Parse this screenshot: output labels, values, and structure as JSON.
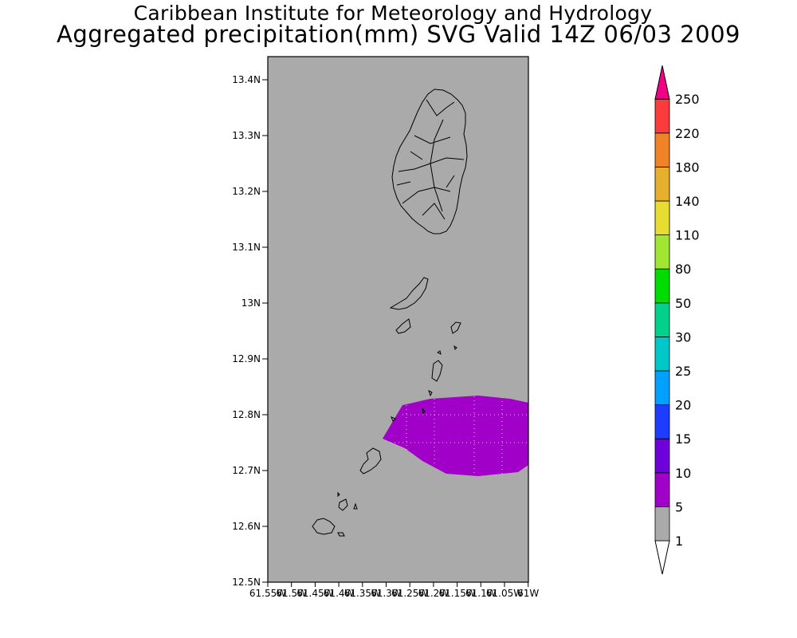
{
  "title_line1": "Caribbean Institute for Meteorology and Hydrology",
  "title_line2": "Aggregated precipitation(mm) SVG Valid 14Z 06/03 2009",
  "map": {
    "background_color": "#aaaaaa",
    "lat_ticks": [
      "13.4N",
      "13.3N",
      "13.2N",
      "13.1N",
      "13N",
      "12.9N",
      "12.8N",
      "12.7N",
      "12.6N",
      "12.5N"
    ],
    "lon_ticks": [
      "61.55W",
      "61.5W",
      "61.45W",
      "61.4W",
      "61.35W",
      "61.3W",
      "61.25W",
      "61.2W",
      "61.15W",
      "61.1W",
      "61.05W",
      "61W"
    ],
    "precip_region_color": "#a000c8"
  },
  "legend": {
    "labels": [
      "1",
      "5",
      "10",
      "15",
      "20",
      "25",
      "30",
      "50",
      "80",
      "110",
      "140",
      "180",
      "220",
      "250"
    ],
    "colors": [
      "#aaaaaa",
      "#a000c8",
      "#6e00dc",
      "#1e3cff",
      "#00a0ff",
      "#00c8c8",
      "#00d28c",
      "#00dc00",
      "#a0e632",
      "#e6dc32",
      "#e6af2d",
      "#f08228",
      "#fa3c3c",
      "#f00082"
    ],
    "bottom_arrow_color": "#ffffff"
  }
}
